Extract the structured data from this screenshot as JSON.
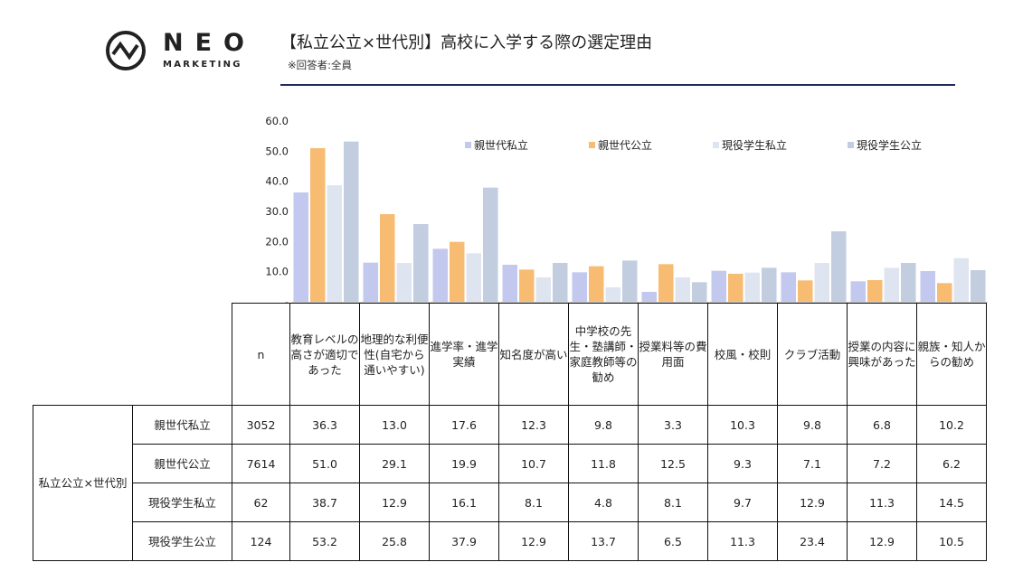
{
  "logo": {
    "word": "NEO",
    "sub": "MARKETING"
  },
  "header": {
    "title": "【私立公立×世代別】高校に入学する際の選定理由",
    "note": "※回答者:全員"
  },
  "colors": {
    "親世代私立": "#c3c8ee",
    "親世代公立": "#f7bb72",
    "現役学生私立": "#dfe5f0",
    "現役学生公立": "#c2cddf"
  },
  "chart_data": {
    "type": "bar",
    "categories": [
      "教育レベルの高さが適切であった",
      "地理的な利便性(自宅から通いやすい)",
      "進学率・進学実績",
      "知名度が高い",
      "中学校の先生・塾講師・家庭教師等の勧め",
      "授業料等の費用面",
      "校風・校則",
      "クラブ活動",
      "授業の内容に興味があった",
      "親族・知人からの勧め"
    ],
    "series": [
      {
        "name": "親世代私立",
        "values": [
          36.3,
          13.0,
          17.6,
          12.3,
          9.8,
          3.3,
          10.3,
          9.8,
          6.8,
          10.2
        ]
      },
      {
        "name": "親世代公立",
        "values": [
          51.0,
          29.1,
          19.9,
          10.7,
          11.8,
          12.5,
          9.3,
          7.1,
          7.2,
          6.2
        ]
      },
      {
        "name": "現役学生私立",
        "values": [
          38.7,
          12.9,
          16.1,
          8.1,
          4.8,
          8.1,
          9.7,
          12.9,
          11.3,
          14.5
        ]
      },
      {
        "name": "現役学生公立",
        "values": [
          53.2,
          25.8,
          37.9,
          12.9,
          13.7,
          6.5,
          11.3,
          23.4,
          12.9,
          10.5
        ]
      }
    ],
    "yticks": [
      "60.0",
      "50.0",
      "40.0",
      "30.0",
      "20.0",
      "10.0",
      "-"
    ],
    "ylim": [
      0,
      60
    ],
    "legend": "top-right",
    "grid": false
  },
  "table": {
    "group_label": "私立公立×世代別",
    "n_header": "n",
    "headers": [
      "教育レベルの高さが適切であった",
      "地理的な利便性(自宅から通いやすい)",
      "進学率・進学実績",
      "知名度が高い",
      "中学校の先生・塾講師・家庭教師等の勧め",
      "授業料等の費用面",
      "校風・校則",
      "クラブ活動",
      "授業の内容に興味があった",
      "親族・知人からの勧め"
    ],
    "rows": [
      {
        "label": "親世代私立",
        "n": "3052",
        "values": [
          "36.3",
          "13.0",
          "17.6",
          "12.3",
          "9.8",
          "3.3",
          "10.3",
          "9.8",
          "6.8",
          "10.2"
        ]
      },
      {
        "label": "親世代公立",
        "n": "7614",
        "values": [
          "51.0",
          "29.1",
          "19.9",
          "10.7",
          "11.8",
          "12.5",
          "9.3",
          "7.1",
          "7.2",
          "6.2"
        ]
      },
      {
        "label": "現役学生私立",
        "n": "62",
        "values": [
          "38.7",
          "12.9",
          "16.1",
          "8.1",
          "4.8",
          "8.1",
          "9.7",
          "12.9",
          "11.3",
          "14.5"
        ]
      },
      {
        "label": "現役学生公立",
        "n": "124",
        "values": [
          "53.2",
          "25.8",
          "37.9",
          "12.9",
          "13.7",
          "6.5",
          "11.3",
          "23.4",
          "12.9",
          "10.5"
        ]
      }
    ]
  }
}
